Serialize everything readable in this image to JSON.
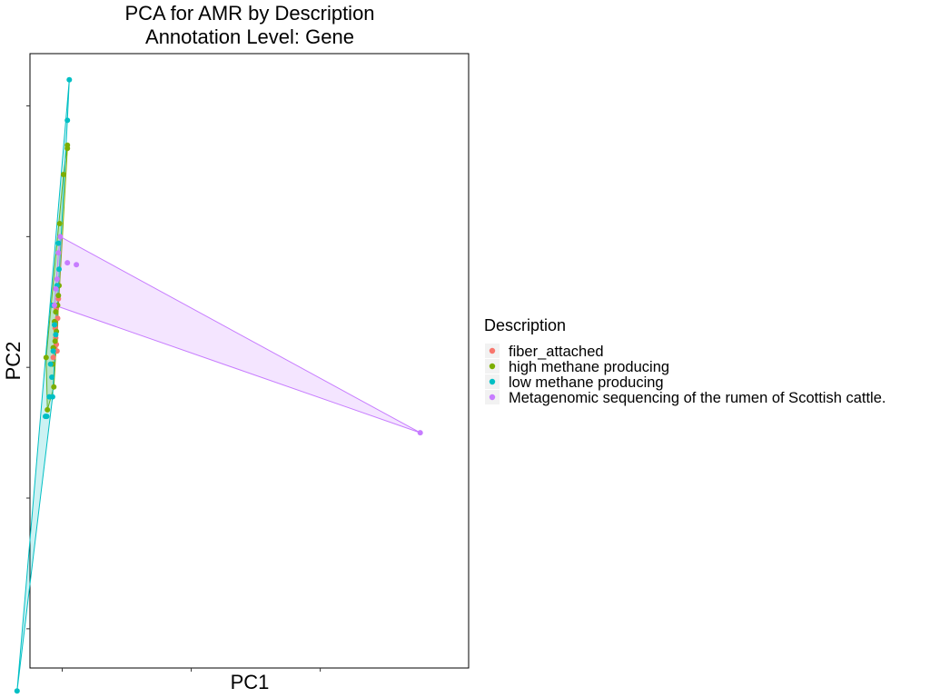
{
  "chart_data": {
    "type": "scatter",
    "title": "PCA for AMR by Description",
    "subtitle": "Annotation Level: Gene",
    "xlabel": "PC1",
    "ylabel": "PC2",
    "xlim": [
      -0.5,
      6.3
    ],
    "ylim": [
      -3.6,
      5.8
    ],
    "x_ticks": [
      0,
      2,
      4
    ],
    "y_ticks": [
      -3,
      -1,
      1,
      3,
      5
    ],
    "tick_labels_shown": false,
    "grid": false,
    "hulls": true,
    "legend": {
      "title": "Description",
      "placement": "right"
    },
    "series": [
      {
        "name": "fiber_attached",
        "color": "#F8766D",
        "points": [
          [
            -0.06,
            2.05
          ],
          [
            -0.09,
            1.9
          ],
          [
            -0.07,
            1.75
          ],
          [
            -0.11,
            1.6
          ],
          [
            -0.09,
            1.35
          ],
          [
            -0.14,
            1.15
          ],
          [
            -0.1,
            1.45
          ],
          [
            -0.08,
            1.25
          ]
        ]
      },
      {
        "name": "high methane producing",
        "color": "#7CAE00",
        "points": [
          [
            0.08,
            4.35
          ],
          [
            0.08,
            4.4
          ],
          [
            0.02,
            3.95
          ],
          [
            -0.04,
            3.2
          ],
          [
            -0.06,
            2.1
          ],
          [
            -0.1,
            1.85
          ],
          [
            -0.12,
            1.7
          ],
          [
            -0.14,
            1.3
          ],
          [
            -0.25,
            1.15
          ],
          [
            -0.13,
            0.7
          ],
          [
            -0.23,
            0.35
          ],
          [
            -0.09,
            1.55
          ],
          [
            -0.11,
            1.4
          ],
          [
            -0.15,
            1.05
          ],
          [
            -0.07,
            1.95
          ],
          [
            -0.05,
            2.25
          ]
        ]
      },
      {
        "name": "low methane producing",
        "color": "#00BFC4",
        "points": [
          [
            0.11,
            5.4
          ],
          [
            0.08,
            4.78
          ],
          [
            -0.06,
            2.9
          ],
          [
            -0.05,
            2.5
          ],
          [
            -0.08,
            2.25
          ],
          [
            -0.15,
            1.95
          ],
          [
            -0.12,
            1.65
          ],
          [
            -0.14,
            1.25
          ],
          [
            -0.16,
            0.85
          ],
          [
            -0.15,
            0.55
          ],
          [
            -0.2,
            0.55
          ],
          [
            -0.24,
            0.25
          ],
          [
            -0.26,
            0.25
          ],
          [
            -0.18,
            1.05
          ],
          [
            -0.1,
            1.5
          ],
          [
            -0.7,
            -3.95
          ]
        ]
      },
      {
        "name": "Metagenomic sequencing of the rumen of Scottish cattle.",
        "color": "#C77CFF",
        "points": [
          [
            -0.03,
            3.0
          ],
          [
            0.08,
            2.6
          ],
          [
            0.22,
            2.57
          ],
          [
            -0.06,
            2.75
          ],
          [
            -0.1,
            2.2
          ],
          [
            -0.12,
            1.95
          ],
          [
            -0.08,
            2.35
          ],
          [
            5.55,
            0.0
          ]
        ]
      }
    ]
  }
}
